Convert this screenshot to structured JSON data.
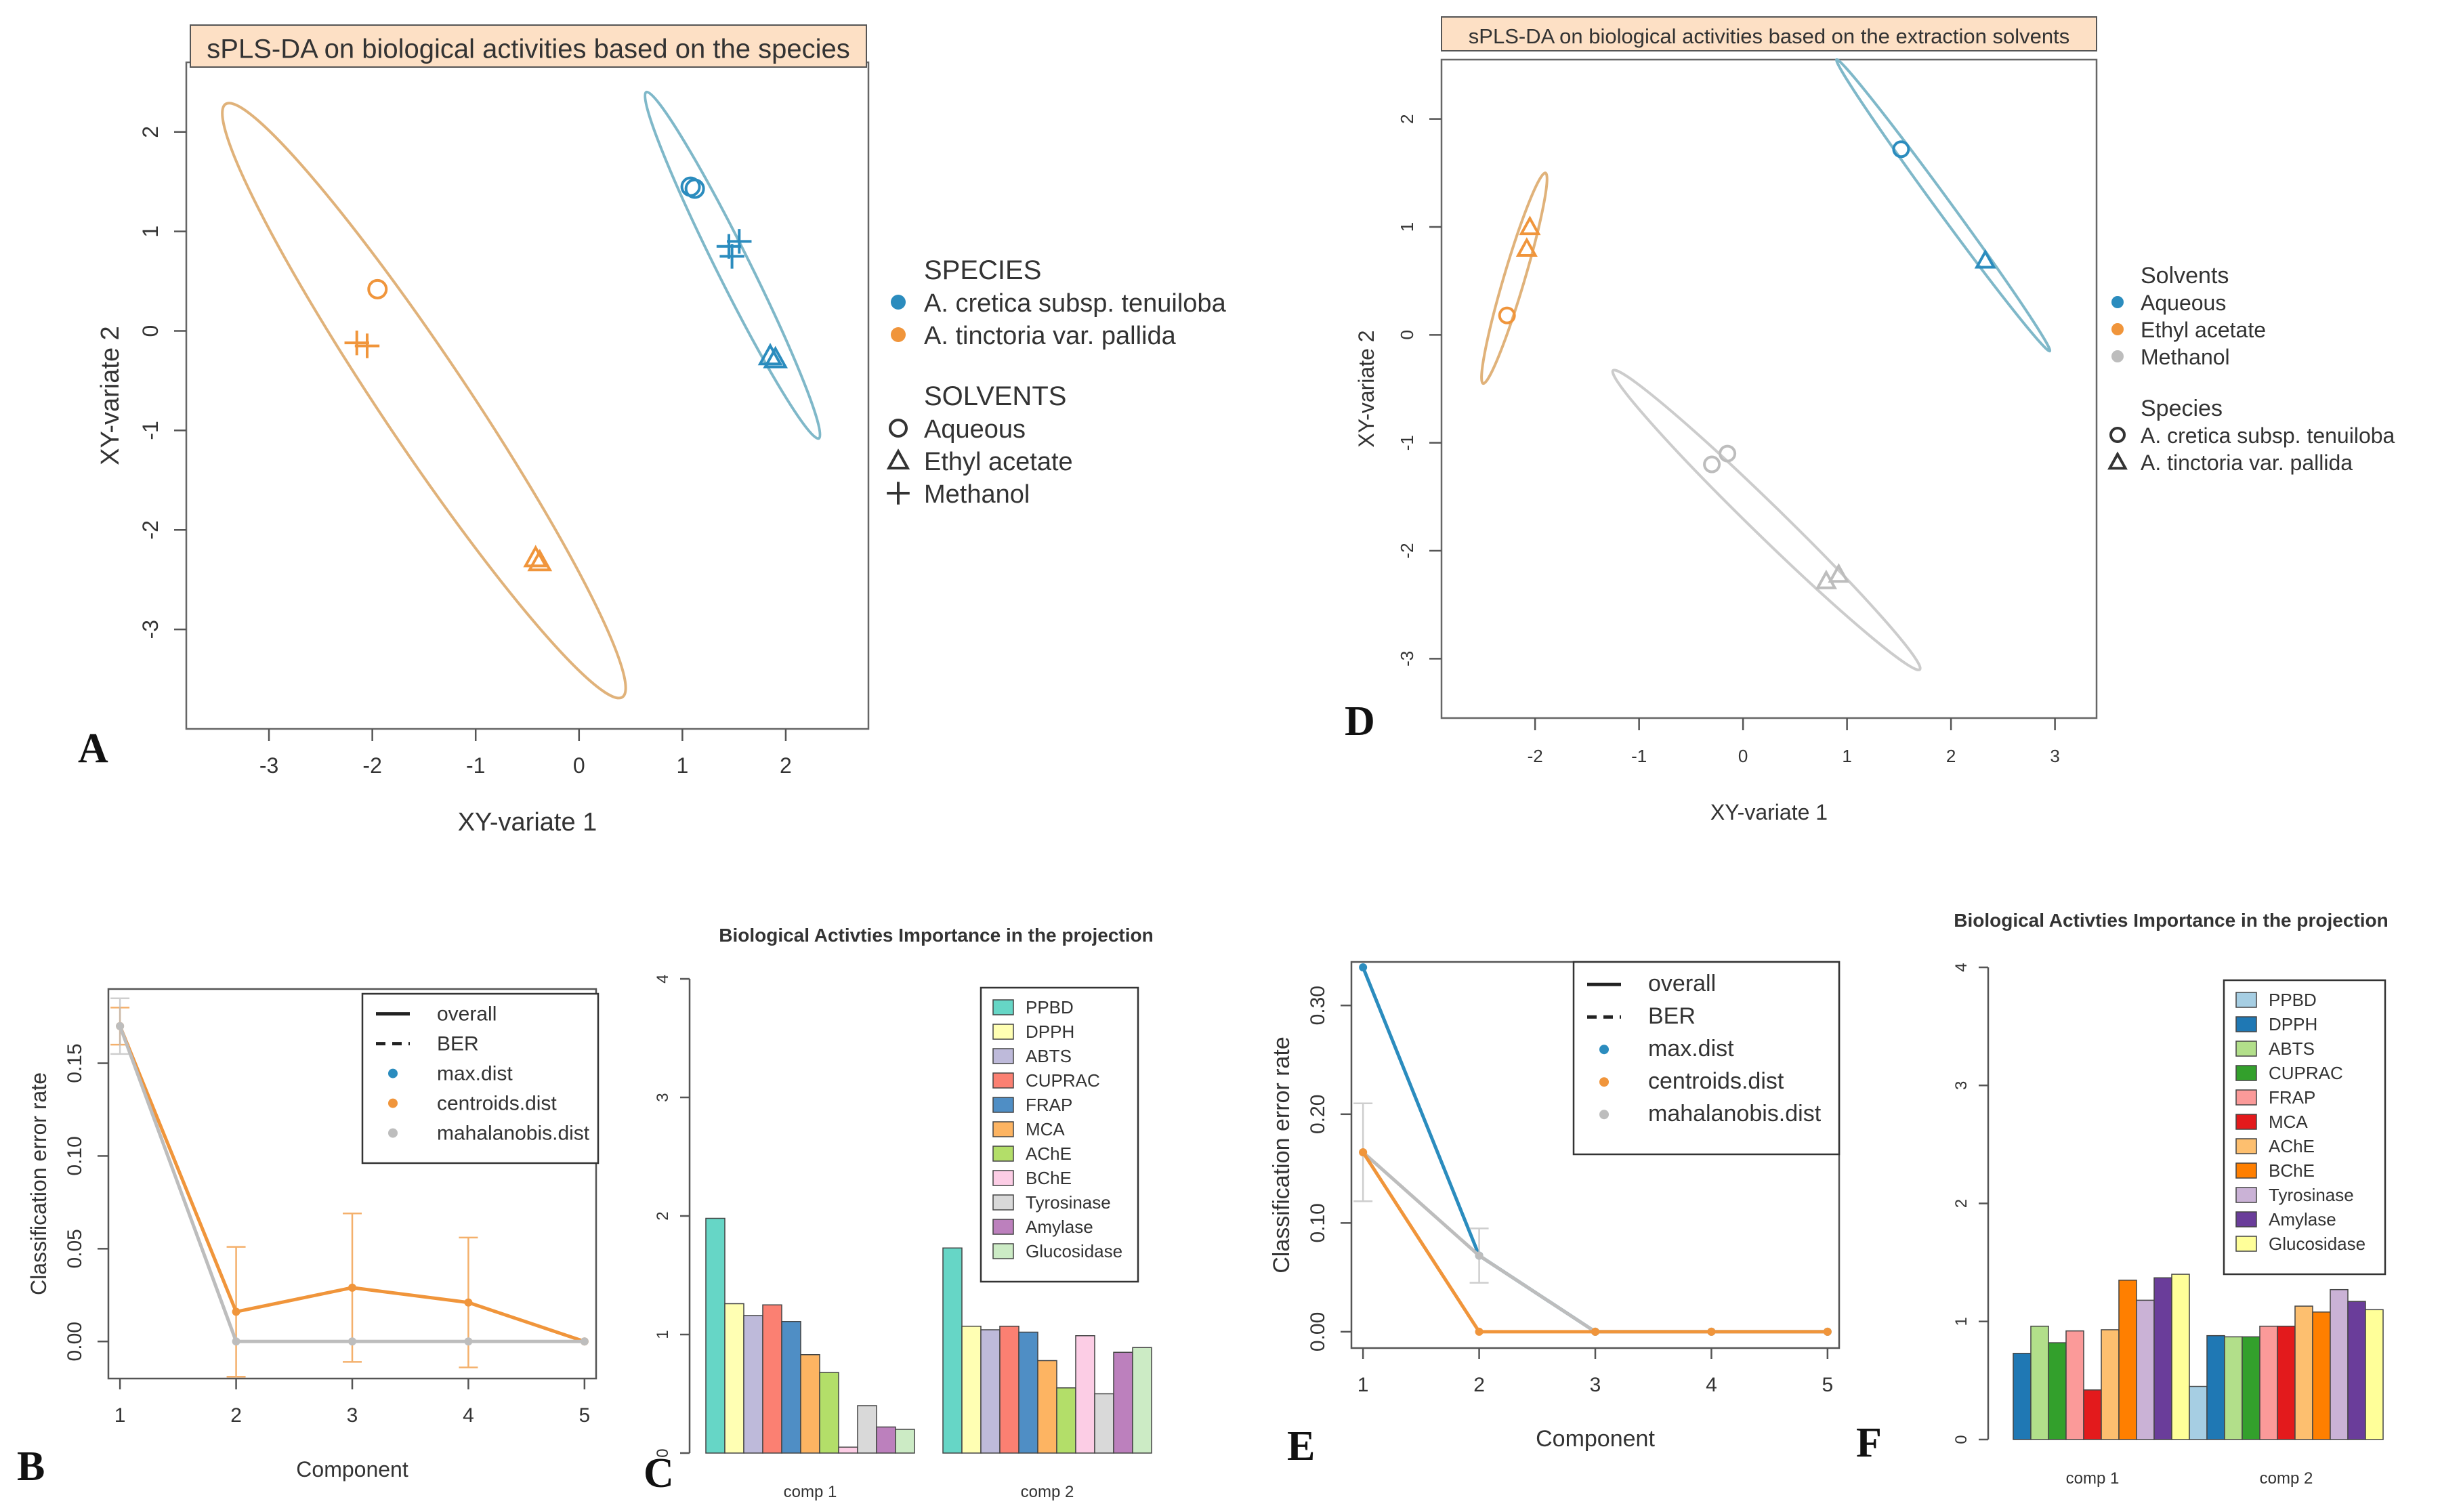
{
  "panel_letters": {
    "A": "A",
    "B": "B",
    "C": "C",
    "D": "D",
    "E": "E",
    "F": "F"
  },
  "colors": {
    "blue": "#2b8cbe",
    "orange": "#f0953b",
    "grey": "#bdbdbd",
    "ellipse_blue": "#7fb8c9",
    "ellipse_orange": "#e0b27a",
    "ellipse_grey": "#cccccc",
    "title_bg": "#fde0c5"
  },
  "chart_data": [
    {
      "id": "A",
      "type": "scatter",
      "title": "sPLS-DA on biological activities based on the species",
      "xlabel": "XY-variate 1",
      "ylabel": "XY-variate 2",
      "xlim": [
        -3.8,
        2.8
      ],
      "ylim": [
        -4,
        2.7
      ],
      "xticks": [
        "-3",
        "-2",
        "-1",
        "0",
        "1",
        "2"
      ],
      "yticks": [
        "-3",
        "-2",
        "-1",
        "0",
        "1",
        "2"
      ],
      "points": [
        {
          "x": 1.08,
          "y": 1.45,
          "shape": "circle",
          "color": "blue"
        },
        {
          "x": 1.12,
          "y": 1.43,
          "shape": "circle",
          "color": "blue"
        },
        {
          "x": 1.45,
          "y": 0.85,
          "shape": "plus",
          "color": "blue"
        },
        {
          "x": 1.55,
          "y": 0.9,
          "shape": "plus",
          "color": "blue"
        },
        {
          "x": 1.48,
          "y": 0.75,
          "shape": "plus",
          "color": "blue"
        },
        {
          "x": 1.85,
          "y": -0.25,
          "shape": "triangle",
          "color": "blue"
        },
        {
          "x": 1.9,
          "y": -0.28,
          "shape": "triangle",
          "color": "blue"
        },
        {
          "x": -1.95,
          "y": 0.42,
          "shape": "circle",
          "color": "orange"
        },
        {
          "x": -2.15,
          "y": -0.12,
          "shape": "plus",
          "color": "orange"
        },
        {
          "x": -2.05,
          "y": -0.15,
          "shape": "plus",
          "color": "orange"
        },
        {
          "x": -0.42,
          "y": -2.28,
          "shape": "triangle",
          "color": "orange"
        },
        {
          "x": -0.38,
          "y": -2.32,
          "shape": "triangle",
          "color": "orange"
        }
      ],
      "ellipses": [
        {
          "color": "ellipse_blue",
          "p1": [
            0.65,
            2.4
          ],
          "p2": [
            2.32,
            -1.08
          ],
          "minor": 0.16
        },
        {
          "color": "ellipse_orange",
          "p1": [
            -3.42,
            2.28
          ],
          "p2": [
            0.42,
            -3.68
          ],
          "minor": 0.42
        }
      ],
      "legend": {
        "species_title": "SPECIES",
        "species": [
          {
            "label": "A. cretica subsp. tenuiloba",
            "color": "blue"
          },
          {
            "label": "A. tinctoria var. pallida",
            "color": "orange"
          }
        ],
        "solvents_title": "SOLVENTS",
        "solvents": [
          {
            "label": "Aqueous",
            "shape": "circle"
          },
          {
            "label": "Ethyl acetate",
            "shape": "triangle"
          },
          {
            "label": "Methanol",
            "shape": "plus"
          }
        ]
      }
    },
    {
      "id": "D",
      "type": "scatter",
      "title": "sPLS-DA on biological activities based on the extraction solvents",
      "xlabel": "XY-variate 1",
      "ylabel": "XY-variate 2",
      "xlim": [
        -2.9,
        3.4
      ],
      "ylim": [
        -3.55,
        2.55
      ],
      "xticks": [
        "-2",
        "-1",
        "0",
        "1",
        "2",
        "3"
      ],
      "yticks": [
        "-3",
        "-2",
        "-1",
        "0",
        "1",
        "2"
      ],
      "points": [
        {
          "x": 1.52,
          "y": 1.72,
          "shape": "circle",
          "color": "blue"
        },
        {
          "x": 2.33,
          "y": 0.69,
          "shape": "triangle",
          "color": "blue"
        },
        {
          "x": -2.27,
          "y": 0.18,
          "shape": "circle",
          "color": "orange"
        },
        {
          "x": -2.05,
          "y": 1.0,
          "shape": "triangle",
          "color": "orange"
        },
        {
          "x": -2.08,
          "y": 0.8,
          "shape": "triangle",
          "color": "orange"
        },
        {
          "x": -0.3,
          "y": -1.2,
          "shape": "circle",
          "color": "grey"
        },
        {
          "x": -0.15,
          "y": -1.1,
          "shape": "circle",
          "color": "grey"
        },
        {
          "x": 0.8,
          "y": -2.28,
          "shape": "triangle",
          "color": "grey"
        },
        {
          "x": 0.92,
          "y": -2.22,
          "shape": "triangle",
          "color": "grey"
        }
      ],
      "ellipses": [
        {
          "color": "ellipse_blue",
          "p1": [
            0.9,
            2.55
          ],
          "p2": [
            2.95,
            -0.15
          ],
          "minor": 0.07
        },
        {
          "color": "ellipse_orange",
          "p1": [
            -1.9,
            1.5
          ],
          "p2": [
            -2.5,
            -0.45
          ],
          "minor": 0.1
        },
        {
          "color": "ellipse_grey",
          "p1": [
            -1.25,
            -0.33
          ],
          "p2": [
            1.7,
            -3.1
          ],
          "minor": 0.15
        }
      ],
      "legend": {
        "solvents_title": "Solvents",
        "solvents": [
          {
            "label": "Aqueous",
            "color": "blue"
          },
          {
            "label": "Ethyl acetate",
            "color": "orange"
          },
          {
            "label": "Methanol",
            "color": "grey"
          }
        ],
        "species_title": "Species",
        "species": [
          {
            "label": "A. cretica subsp. tenuiloba",
            "shape": "circle"
          },
          {
            "label": "A. tinctoria var. pallida",
            "shape": "triangle"
          }
        ]
      }
    },
    {
      "id": "B",
      "type": "line",
      "xlabel": "Component",
      "ylabel": "Classification error rate",
      "x": [
        1,
        2,
        3,
        4,
        5
      ],
      "xlim": [
        0.9,
        5.1
      ],
      "ylim": [
        -0.02,
        0.19
      ],
      "xticks": [
        "1",
        "2",
        "3",
        "4",
        "5"
      ],
      "yticks": [
        "0.00",
        "0.05",
        "0.10",
        "0.15"
      ],
      "series": [
        {
          "name": "centroids.dist",
          "color": "orange",
          "values": [
            0.17,
            0.016,
            0.029,
            0.021,
            0.0
          ],
          "errors": [
            0.01,
            0.035,
            0.04,
            0.035,
            0.0
          ]
        },
        {
          "name": "mahalanobis.dist",
          "color": "grey",
          "values": [
            0.17,
            0.0,
            0.0,
            0.0,
            0.0
          ],
          "errors": [
            0.015,
            0.0,
            0.0,
            0.0,
            0.0
          ]
        }
      ],
      "legend": [
        {
          "label": "overall",
          "kind": "solid"
        },
        {
          "label": "BER",
          "kind": "dashed"
        },
        {
          "label": "max.dist",
          "kind": "dot",
          "color": "blue"
        },
        {
          "label": "centroids.dist",
          "kind": "dot",
          "color": "orange"
        },
        {
          "label": "mahalanobis.dist",
          "kind": "dot",
          "color": "grey"
        }
      ]
    },
    {
      "id": "E",
      "type": "line",
      "xlabel": "Component",
      "ylabel": "Classification error rate",
      "x": [
        1,
        2,
        3,
        4,
        5
      ],
      "xlim": [
        0.9,
        5.1
      ],
      "ylim": [
        -0.015,
        0.34
      ],
      "xticks": [
        "1",
        "2",
        "3",
        "4",
        "5"
      ],
      "yticks": [
        "0.00",
        "0.10",
        "0.20",
        "0.30"
      ],
      "series": [
        {
          "name": "max.dist",
          "color": "blue",
          "values": [
            0.335,
            0.07,
            0.0,
            0.0,
            0.0
          ],
          "errors": [
            0.0,
            0.0,
            0.0,
            0.0,
            0.0
          ]
        },
        {
          "name": "mahalanobis.dist",
          "color": "grey",
          "values": [
            0.165,
            0.07,
            0.0,
            0.0,
            0.0
          ],
          "errors": [
            0.045,
            0.025,
            0.0,
            0.0,
            0.0
          ]
        },
        {
          "name": "centroids.dist",
          "color": "orange",
          "values": [
            0.165,
            0.0,
            0.0,
            0.0,
            0.0
          ],
          "errors": [
            0.0,
            0.0,
            0.0,
            0.0,
            0.0
          ]
        }
      ],
      "legend": [
        {
          "label": "overall",
          "kind": "solid"
        },
        {
          "label": "BER",
          "kind": "dashed"
        },
        {
          "label": "max.dist",
          "kind": "dot",
          "color": "blue"
        },
        {
          "label": "centroids.dist",
          "kind": "dot",
          "color": "orange"
        },
        {
          "label": "mahalanobis.dist",
          "kind": "dot",
          "color": "grey"
        }
      ]
    },
    {
      "id": "C",
      "type": "bar",
      "title": "Biological Activties Importance in the projection",
      "categories": [
        "comp 1",
        "comp 2"
      ],
      "ylim": [
        0,
        4
      ],
      "yticks": [
        "0",
        "1",
        "2",
        "3",
        "4"
      ],
      "series": [
        {
          "name": "PPBD",
          "color": "#66d6c6",
          "values": [
            1.98,
            1.73
          ]
        },
        {
          "name": "DPPH",
          "color": "#ffffb3",
          "values": [
            1.26,
            1.07
          ]
        },
        {
          "name": "ABTS",
          "color": "#bebada",
          "values": [
            1.16,
            1.04
          ]
        },
        {
          "name": "CUPRAC",
          "color": "#fb8072",
          "values": [
            1.25,
            1.07
          ]
        },
        {
          "name": "FRAP",
          "color": "#4f8ec5",
          "values": [
            1.11,
            1.02
          ]
        },
        {
          "name": "MCA",
          "color": "#fdb462",
          "values": [
            0.83,
            0.78
          ]
        },
        {
          "name": "AChE",
          "color": "#b3de69",
          "values": [
            0.68,
            0.55
          ]
        },
        {
          "name": "BChE",
          "color": "#fccde5",
          "values": [
            0.05,
            0.99
          ]
        },
        {
          "name": "Tyrosinase",
          "color": "#d9d9d9",
          "values": [
            0.4,
            0.5
          ]
        },
        {
          "name": "Amylase",
          "color": "#bc80bd",
          "values": [
            0.22,
            0.85
          ]
        },
        {
          "name": "Glucosidase",
          "color": "#ccebc5",
          "values": [
            0.2,
            0.89
          ]
        }
      ]
    },
    {
      "id": "F",
      "type": "bar",
      "title": "Biological Activties Importance in the projection",
      "categories": [
        "comp 1",
        "comp 2"
      ],
      "ylim": [
        0,
        4
      ],
      "yticks": [
        "0",
        "1",
        "2",
        "3",
        "4"
      ],
      "series": [
        {
          "name": "PPBD",
          "color": "#a6cee3",
          "values": [
            0.0,
            0.45
          ]
        },
        {
          "name": "DPPH",
          "color": "#1f78b4",
          "values": [
            0.73,
            0.88
          ]
        },
        {
          "name": "ABTS",
          "color": "#b2df8a",
          "values": [
            0.96,
            0.87
          ]
        },
        {
          "name": "CUPRAC",
          "color": "#33a02c",
          "values": [
            0.82,
            0.87
          ]
        },
        {
          "name": "FRAP",
          "color": "#fb9a99",
          "values": [
            0.92,
            0.96
          ]
        },
        {
          "name": "MCA",
          "color": "#e31a1c",
          "values": [
            0.42,
            0.96
          ]
        },
        {
          "name": "AChE",
          "color": "#fdbf6f",
          "values": [
            0.93,
            1.13
          ]
        },
        {
          "name": "BChE",
          "color": "#ff7f00",
          "values": [
            1.35,
            1.08
          ]
        },
        {
          "name": "Tyrosinase",
          "color": "#cab2d6",
          "values": [
            1.18,
            1.27
          ]
        },
        {
          "name": "Amylase",
          "color": "#6a3d9a",
          "values": [
            1.37,
            1.17
          ]
        },
        {
          "name": "Glucosidase",
          "color": "#ffff99",
          "values": [
            1.4,
            1.1
          ]
        }
      ]
    }
  ]
}
